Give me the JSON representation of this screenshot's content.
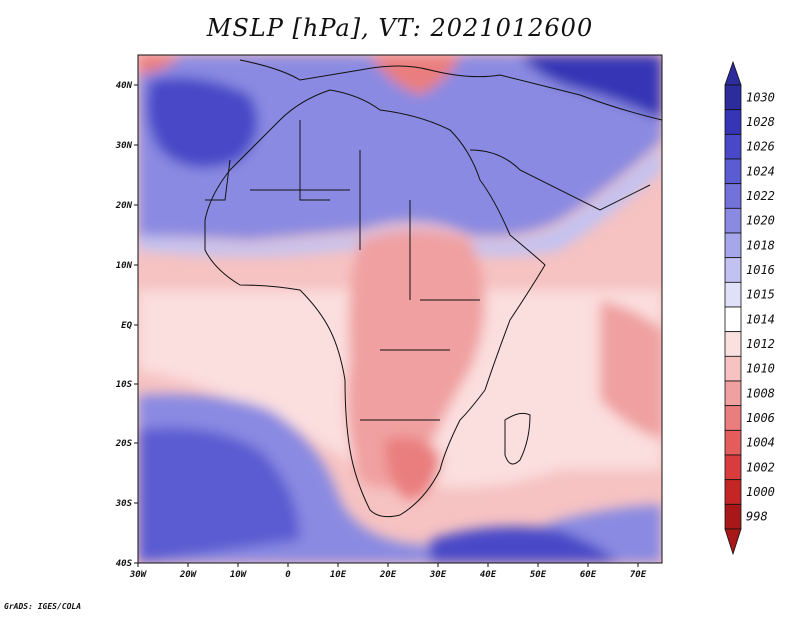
{
  "title": "MSLP [hPa], VT: 2021012600",
  "footer": "GrADS: IGES/COLA",
  "lat_labels": [
    "40N",
    "30N",
    "20N",
    "10N",
    "EQ",
    "10S",
    "20S",
    "30S",
    "40S"
  ],
  "lon_labels": [
    "30W",
    "20W",
    "10W",
    "0",
    "10E",
    "20E",
    "30E",
    "40E",
    "50E",
    "60E",
    "70E"
  ],
  "colorbar": {
    "labels": [
      "1030",
      "1028",
      "1026",
      "1024",
      "1022",
      "1020",
      "1018",
      "1016",
      "1015",
      "1014",
      "1012",
      "1010",
      "1008",
      "1006",
      "1004",
      "1002",
      "1000",
      "998"
    ],
    "colors": [
      "#2c2c9c",
      "#3535b5",
      "#4848c8",
      "#5c5cd2",
      "#7272da",
      "#8a8ae2",
      "#a6a6ea",
      "#c2c2f2",
      "#e0e0f9",
      "#ffffff",
      "#fbe0e0",
      "#f6c2c2",
      "#f0a0a0",
      "#ea7e7e",
      "#e45c5c",
      "#d83c3c",
      "#c42626",
      "#a81818"
    ]
  },
  "palette": {
    "ocean_low": "#f4b8b8",
    "high_north": "#5a5ad0",
    "high_south": "#6c6cd6"
  }
}
